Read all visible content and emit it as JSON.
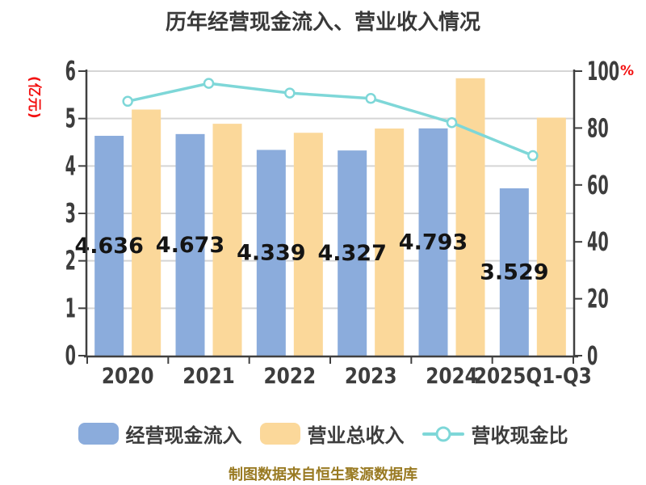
{
  "title": "历年经营现金流入、营业收入情况",
  "footer": "制图数据来自恒生聚源数据库",
  "colors": {
    "bar_cash_inflow": "#8BACDC",
    "bar_revenue": "#FBD89A",
    "ratio_line": "#7ED7D8",
    "axis": "#404040",
    "grid": "#D5D5D5",
    "text_dark": "#3D3D3D",
    "bar_value_label": "#141414",
    "unit_label_red": "#F31212",
    "footer_text": "#997A22",
    "background": "#FFFFFF"
  },
  "chart_data": {
    "type": "bar",
    "categories": [
      "2020",
      "2021",
      "2022",
      "2023",
      "2024",
      "2025Q1-Q3"
    ],
    "series": [
      {
        "name": "经营现金流入",
        "type": "bar",
        "axis": "left",
        "color": "#8BACDC",
        "values": [
          4.636,
          4.673,
          4.339,
          4.327,
          4.793,
          3.529
        ],
        "value_labels": [
          "4.636",
          "4.673",
          "4.339",
          "4.327",
          "4.793",
          "3.529"
        ]
      },
      {
        "name": "营业总收入",
        "type": "bar",
        "axis": "left",
        "color": "#FBD89A",
        "values": [
          5.19,
          4.89,
          4.7,
          4.79,
          5.85,
          5.02
        ]
      },
      {
        "name": "营收现金比",
        "type": "line",
        "axis": "right",
        "color": "#7ED7D8",
        "marker": "circle-white-fill",
        "values": [
          89.4,
          95.7,
          92.3,
          90.4,
          81.9,
          70.3
        ]
      }
    ],
    "left_axis": {
      "label": "(亿元)",
      "min": 0,
      "max": 6,
      "ticks": [
        0,
        1,
        2,
        3,
        4,
        5,
        6
      ]
    },
    "right_axis": {
      "label": "%",
      "min": 0,
      "max": 100,
      "ticks": [
        0,
        20,
        40,
        60,
        80,
        100
      ]
    },
    "grid": true,
    "legend_position": "bottom"
  }
}
